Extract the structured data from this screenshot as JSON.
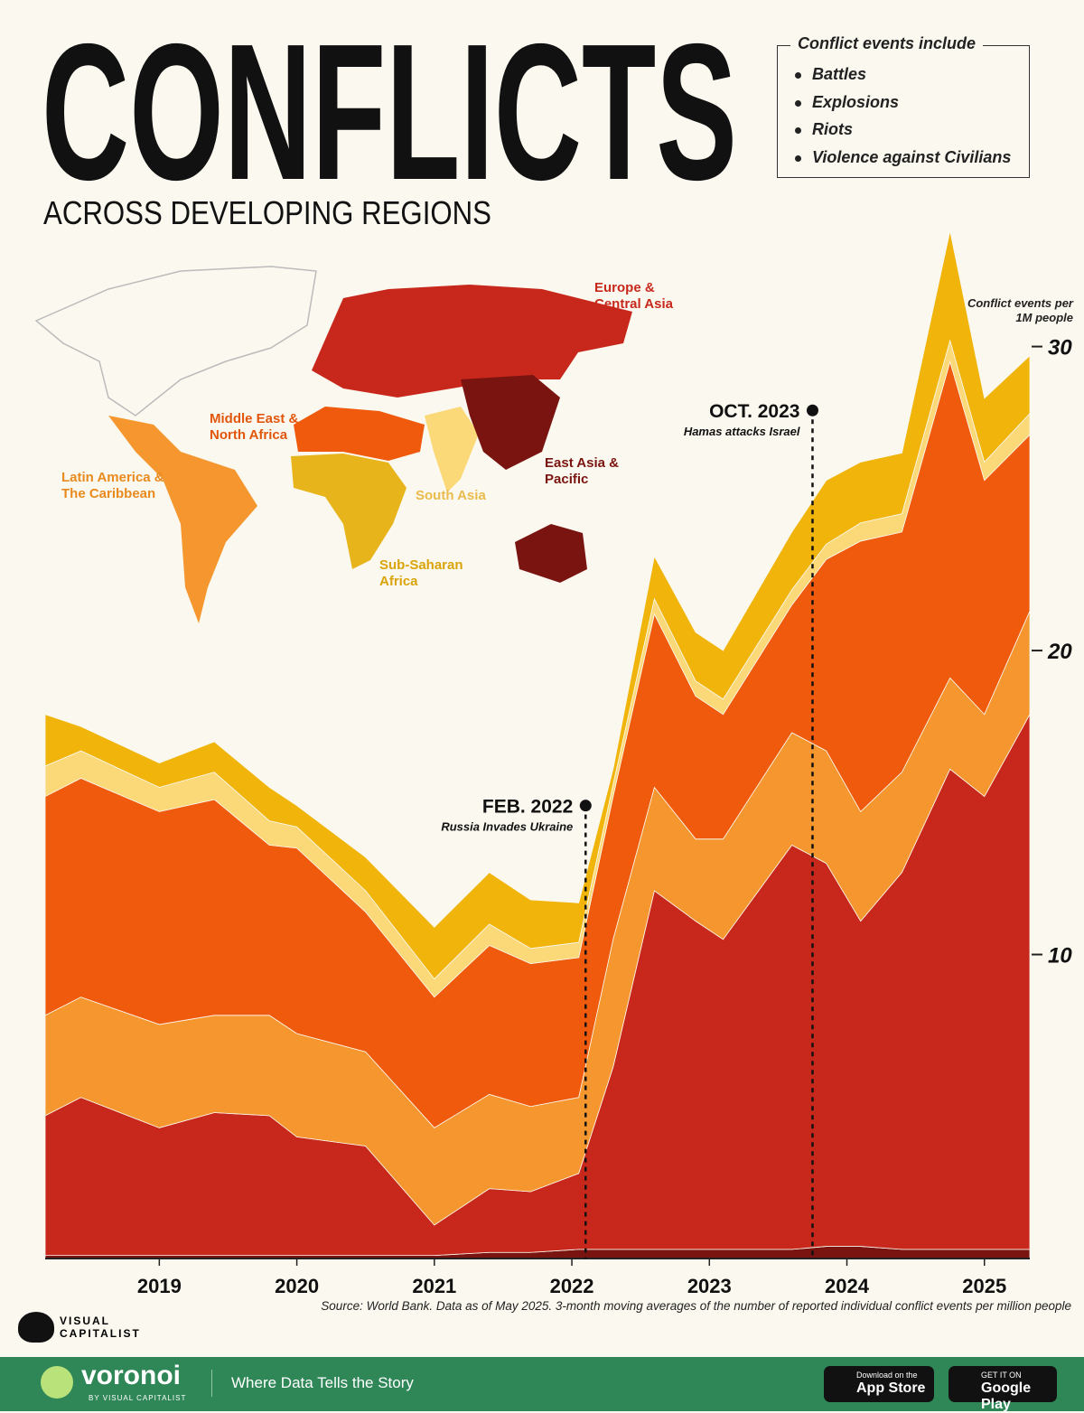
{
  "header": {
    "title": "CONFLICTS",
    "subtitle": "ACROSS DEVELOPING REGIONS",
    "legend_title": "Conflict events include",
    "legend_items": [
      "Battles",
      "Explosions",
      "Riots",
      "Violence against Civilians"
    ]
  },
  "chart_data": {
    "type": "stacked-area",
    "y_label": "Conflict events per 1M people",
    "x": [
      2018.17,
      2018.43,
      2019.0,
      2019.4,
      2019.8,
      2020.0,
      2020.5,
      2021.0,
      2021.4,
      2021.7,
      2022.05,
      2022.3,
      2022.6,
      2022.9,
      2023.1,
      2023.6,
      2023.85,
      2024.1,
      2024.4,
      2024.75,
      2025.0,
      2025.33
    ],
    "xlim": [
      2018.17,
      2025.33
    ],
    "xticks": [
      2019,
      2020,
      2021,
      2022,
      2023,
      2024,
      2025
    ],
    "ylim": [
      0,
      34
    ],
    "yticks": [
      10,
      20,
      30
    ],
    "series": [
      {
        "name": "East Asia & Pacific",
        "color": "#7a1410",
        "values": [
          0.1,
          0.1,
          0.1,
          0.1,
          0.1,
          0.1,
          0.1,
          0.1,
          0.2,
          0.2,
          0.3,
          0.3,
          0.3,
          0.3,
          0.3,
          0.3,
          0.4,
          0.4,
          0.3,
          0.3,
          0.3,
          0.3
        ]
      },
      {
        "name": "Europe & Central Asia",
        "color": "#c8281c",
        "values": [
          4.6,
          5.2,
          4.2,
          4.7,
          4.6,
          3.9,
          3.6,
          1.0,
          2.1,
          2.0,
          2.5,
          6.0,
          11.8,
          10.8,
          10.2,
          13.3,
          12.6,
          10.7,
          12.4,
          15.8,
          14.9,
          17.6
        ]
      },
      {
        "name": "Latin America & The Caribbean",
        "color": "#f5962e",
        "values": [
          3.3,
          3.3,
          3.4,
          3.2,
          3.3,
          3.4,
          3.1,
          3.2,
          3.1,
          2.8,
          2.5,
          4.2,
          3.4,
          2.7,
          3.3,
          3.7,
          3.7,
          3.6,
          3.3,
          3.0,
          2.7,
          3.4
        ]
      },
      {
        "name": "Middle East & North Africa",
        "color": "#ef5a0c",
        "values": [
          7.2,
          7.2,
          7.0,
          7.1,
          5.6,
          6.1,
          4.6,
          4.3,
          4.9,
          4.7,
          4.6,
          4.7,
          5.7,
          4.7,
          4.1,
          4.2,
          6.3,
          8.9,
          7.9,
          10.4,
          7.7,
          5.8
        ]
      },
      {
        "name": "South Asia",
        "color": "#fbd878",
        "values": [
          1.0,
          0.9,
          0.8,
          0.9,
          0.8,
          0.7,
          0.7,
          0.6,
          0.7,
          0.5,
          0.5,
          0.4,
          0.5,
          0.5,
          0.5,
          0.5,
          0.5,
          0.6,
          0.6,
          0.7,
          0.6,
          0.7
        ]
      },
      {
        "name": "Sub-Saharan Africa",
        "color": "#f0b40a",
        "values": [
          1.7,
          0.8,
          0.8,
          1.0,
          1.1,
          0.7,
          1.1,
          1.7,
          1.7,
          1.6,
          1.3,
          0.5,
          1.4,
          1.6,
          1.6,
          1.9,
          2.1,
          2.0,
          2.0,
          3.6,
          2.1,
          1.9
        ]
      }
    ],
    "annotations": [
      {
        "x": 2022.1,
        "y": 14.9,
        "label": "FEB. 2022",
        "note": "Russia Invades Ukraine"
      },
      {
        "x": 2023.75,
        "y": 27.9,
        "label": "OCT. 2023",
        "note": "Hamas attacks Israel"
      }
    ],
    "source": "Source: World Bank. Data as of May 2025. 3-month moving averages of the number of reported individual conflict events per million people"
  },
  "footer": {
    "brand_top": "VISUAL",
    "brand_bottom": "CAPITALIST",
    "logo": "voronoi",
    "logo_by": "BY VISUAL CAPITALIST",
    "tagline": "Where Data Tells the Story",
    "app_store_small": "Download on the",
    "app_store": "App Store",
    "google_small": "GET IT ON",
    "google": "Google Play"
  }
}
